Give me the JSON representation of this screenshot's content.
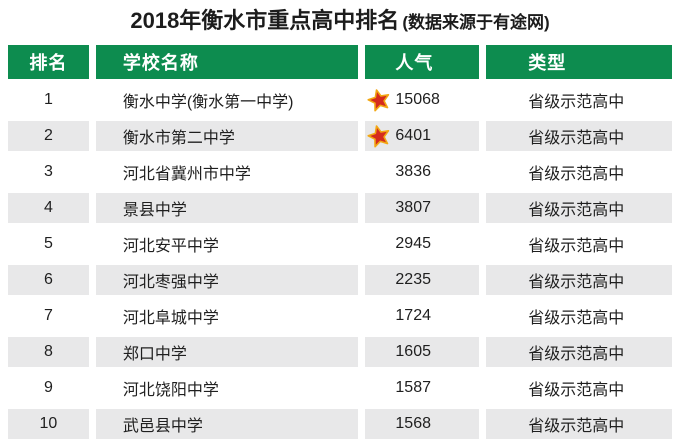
{
  "title": {
    "main": "2018年衡水市重点高中排名",
    "source_note": "(数据来源于有途网)"
  },
  "chart_data": {
    "type": "table",
    "title": "2018年衡水市重点高中排名",
    "source_note": "(数据来源于有途网)",
    "columns": [
      "排名",
      "学校名称",
      "人气",
      "类型"
    ],
    "rows": [
      {
        "rank": "1",
        "school": "衡水中学(衡水第一中学)",
        "popularity": "15068",
        "starred": true,
        "type": "省级示范高中"
      },
      {
        "rank": "2",
        "school": "衡水市第二中学",
        "popularity": "6401",
        "starred": true,
        "type": "省级示范高中"
      },
      {
        "rank": "3",
        "school": "河北省冀州市中学",
        "popularity": "3836",
        "starred": false,
        "type": "省级示范高中"
      },
      {
        "rank": "4",
        "school": "景县中学",
        "popularity": "3807",
        "starred": false,
        "type": "省级示范高中"
      },
      {
        "rank": "5",
        "school": "河北安平中学",
        "popularity": "2945",
        "starred": false,
        "type": "省级示范高中"
      },
      {
        "rank": "6",
        "school": "河北枣强中学",
        "popularity": "2235",
        "starred": false,
        "type": "省级示范高中"
      },
      {
        "rank": "7",
        "school": "河北阜城中学",
        "popularity": "1724",
        "starred": false,
        "type": "省级示范高中"
      },
      {
        "rank": "8",
        "school": "郑口中学",
        "popularity": "1605",
        "starred": false,
        "type": "省级示范高中"
      },
      {
        "rank": "9",
        "school": "河北饶阳中学",
        "popularity": "1587",
        "starred": false,
        "type": "省级示范高中"
      },
      {
        "rank": "10",
        "school": "武邑县中学",
        "popularity": "1568",
        "starred": false,
        "type": "省级示范高中"
      }
    ]
  },
  "icons": {
    "popularity_star": "star-icon"
  },
  "colors": {
    "header_green": "#0d8c4f",
    "row_alt_gray": "#e8e8e9",
    "star_red": "#d52b1e",
    "star_gold": "#f2a713",
    "text": "#1f1f1f"
  }
}
